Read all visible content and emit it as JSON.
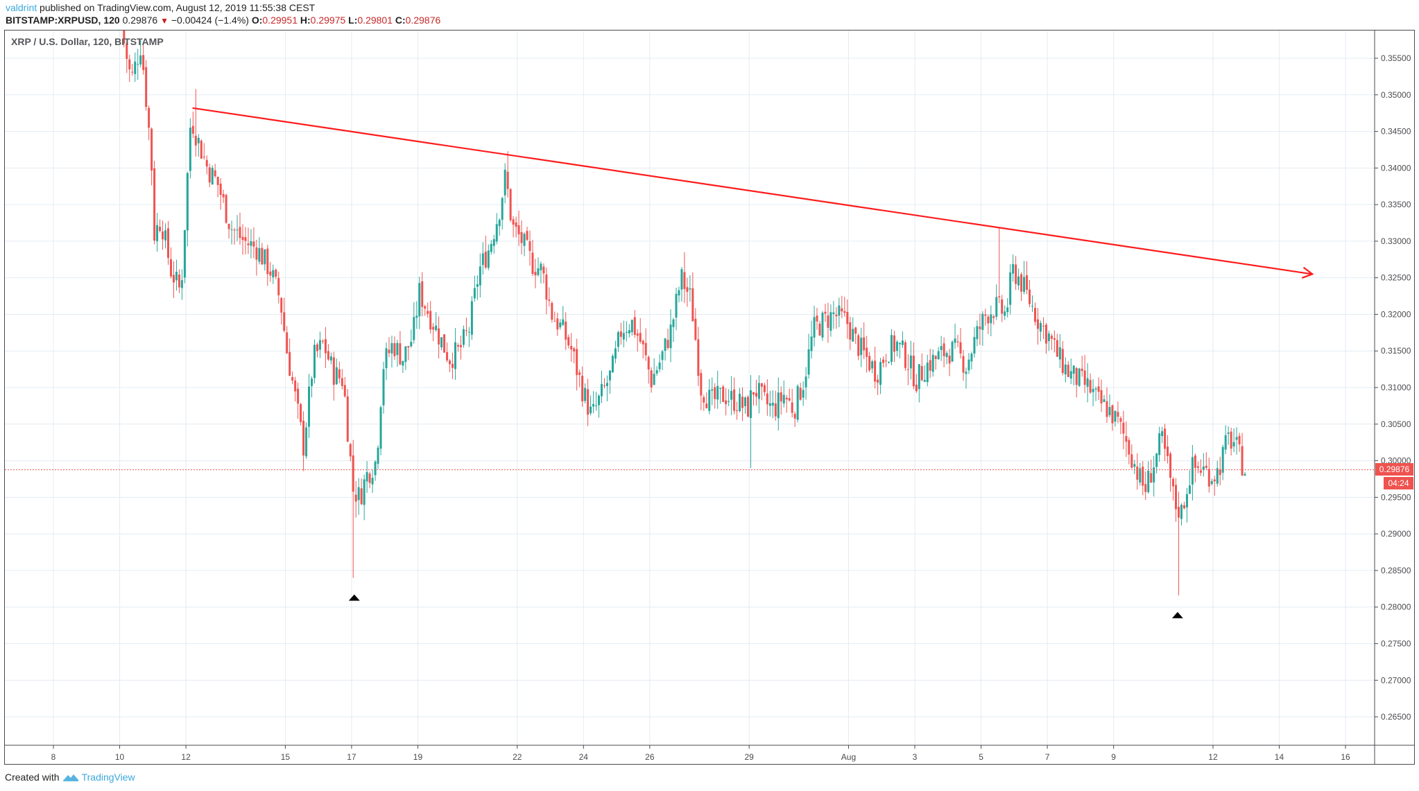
{
  "header": {
    "user": "valdrint",
    "published_text": " published on TradingView.com, August 12, 2019 11:55:38 CEST",
    "symbol": "BITSTAMP:XRPUSD, 120",
    "last_price": "0.29876",
    "change_icon": "triangle-down-icon",
    "change": "−0.00424 (−1.4%)",
    "open_label": "O:",
    "open": "0.29951",
    "high_label": "H:",
    "high": "0.29975",
    "low_label": "L:",
    "low": "0.29801",
    "close_label": "C:",
    "close": "0.29876"
  },
  "legend": "XRP / U.S. Dollar, 120, BITSTAMP",
  "price_tag": {
    "price": "0.29876",
    "countdown": "04:24"
  },
  "footer": {
    "created_with": "Created with",
    "brand": "TradingView",
    "logo_icon": "tradingview-logo-icon"
  },
  "colors": {
    "up": "#26a69a",
    "down": "#ef5350",
    "trendline": "#ff1a1a",
    "grid": "#e3ecf3",
    "axis": "#4a4a4f",
    "price_line": "#ef5350",
    "marker": "#000000"
  },
  "chart_data": {
    "type": "candlestick",
    "title": "XRP / U.S. Dollar, 120, BITSTAMP",
    "interval": "120 (2h candles)",
    "xlabel": "",
    "ylabel": "",
    "ylim": [
      0.2605,
      0.3595
    ],
    "grid": true,
    "y_ticks": [
      "0.35500",
      "0.35000",
      "0.34500",
      "0.34000",
      "0.33500",
      "0.33000",
      "0.32500",
      "0.32000",
      "0.31500",
      "0.31000",
      "0.30500",
      "0.30000",
      "0.29500",
      "0.29000",
      "0.28500",
      "0.28000",
      "0.27500",
      "0.27000",
      "0.26500"
    ],
    "x_ticks": [
      {
        "label": "8",
        "day": 0
      },
      {
        "label": "10",
        "day": 2
      },
      {
        "label": "12",
        "day": 4
      },
      {
        "label": "15",
        "day": 7
      },
      {
        "label": "17",
        "day": 9
      },
      {
        "label": "19",
        "day": 11
      },
      {
        "label": "22",
        "day": 14
      },
      {
        "label": "24",
        "day": 16
      },
      {
        "label": "26",
        "day": 18
      },
      {
        "label": "29",
        "day": 21
      },
      {
        "label": "Aug",
        "day": 24
      },
      {
        "label": "3",
        "day": 26
      },
      {
        "label": "5",
        "day": 28
      },
      {
        "label": "7",
        "day": 30
      },
      {
        "label": "9",
        "day": 32
      },
      {
        "label": "12",
        "day": 35
      },
      {
        "label": "14",
        "day": 37
      },
      {
        "label": "16",
        "day": 39
      }
    ],
    "close_path": [
      [
        2.1,
        0.359
      ],
      [
        2.4,
        0.352
      ],
      [
        2.7,
        0.357
      ],
      [
        3.0,
        0.342
      ],
      [
        3.1,
        0.331
      ],
      [
        3.3,
        0.333
      ],
      [
        3.6,
        0.326
      ],
      [
        3.9,
        0.323
      ],
      [
        4.2,
        0.347
      ],
      [
        4.4,
        0.344
      ],
      [
        4.7,
        0.34
      ],
      [
        5.0,
        0.338
      ],
      [
        5.4,
        0.332
      ],
      [
        5.8,
        0.33
      ],
      [
        6.2,
        0.329
      ],
      [
        6.6,
        0.326
      ],
      [
        6.9,
        0.322
      ],
      [
        7.1,
        0.315
      ],
      [
        7.3,
        0.31
      ],
      [
        7.6,
        0.302
      ],
      [
        7.9,
        0.314
      ],
      [
        8.2,
        0.316
      ],
      [
        8.5,
        0.312
      ],
      [
        8.8,
        0.311
      ],
      [
        9.0,
        0.301
      ],
      [
        9.1,
        0.296
      ],
      [
        9.3,
        0.295
      ],
      [
        9.5,
        0.298
      ],
      [
        9.8,
        0.3
      ],
      [
        10.0,
        0.313
      ],
      [
        10.3,
        0.316
      ],
      [
        10.6,
        0.314
      ],
      [
        10.9,
        0.317
      ],
      [
        11.1,
        0.323
      ],
      [
        11.4,
        0.32
      ],
      [
        11.7,
        0.317
      ],
      [
        12.0,
        0.314
      ],
      [
        12.3,
        0.315
      ],
      [
        12.6,
        0.318
      ],
      [
        12.9,
        0.326
      ],
      [
        13.2,
        0.329
      ],
      [
        13.5,
        0.334
      ],
      [
        13.7,
        0.339
      ],
      [
        13.9,
        0.332
      ],
      [
        14.2,
        0.33
      ],
      [
        14.5,
        0.327
      ],
      [
        14.8,
        0.326
      ],
      [
        15.1,
        0.32
      ],
      [
        15.4,
        0.318
      ],
      [
        15.7,
        0.315
      ],
      [
        16.0,
        0.31
      ],
      [
        16.3,
        0.306
      ],
      [
        16.6,
        0.309
      ],
      [
        16.9,
        0.312
      ],
      [
        17.2,
        0.318
      ],
      [
        17.5,
        0.319
      ],
      [
        17.8,
        0.316
      ],
      [
        18.1,
        0.311
      ],
      [
        18.4,
        0.314
      ],
      [
        18.7,
        0.318
      ],
      [
        19.0,
        0.325
      ],
      [
        19.3,
        0.322
      ],
      [
        19.6,
        0.31
      ],
      [
        19.9,
        0.308
      ],
      [
        20.3,
        0.309
      ],
      [
        20.7,
        0.308
      ],
      [
        21.0,
        0.307
      ],
      [
        21.2,
        0.31
      ],
      [
        21.5,
        0.308
      ],
      [
        21.8,
        0.307
      ],
      [
        22.1,
        0.309
      ],
      [
        22.4,
        0.307
      ],
      [
        22.7,
        0.311
      ],
      [
        23.0,
        0.318
      ],
      [
        23.3,
        0.319
      ],
      [
        23.6,
        0.32
      ],
      [
        24.0,
        0.319
      ],
      [
        24.3,
        0.316
      ],
      [
        24.6,
        0.314
      ],
      [
        24.9,
        0.312
      ],
      [
        25.2,
        0.315
      ],
      [
        25.5,
        0.316
      ],
      [
        25.8,
        0.314
      ],
      [
        26.1,
        0.311
      ],
      [
        26.4,
        0.313
      ],
      [
        26.7,
        0.314
      ],
      [
        27.0,
        0.315
      ],
      [
        27.3,
        0.315
      ],
      [
        27.6,
        0.313
      ],
      [
        27.9,
        0.317
      ],
      [
        28.2,
        0.32
      ],
      [
        28.5,
        0.321
      ],
      [
        28.8,
        0.32
      ],
      [
        29.0,
        0.326
      ],
      [
        29.2,
        0.325
      ],
      [
        29.5,
        0.322
      ],
      [
        29.8,
        0.319
      ],
      [
        30.1,
        0.317
      ],
      [
        30.4,
        0.314
      ],
      [
        30.7,
        0.312
      ],
      [
        31.0,
        0.311
      ],
      [
        31.3,
        0.31
      ],
      [
        31.6,
        0.308
      ],
      [
        31.9,
        0.307
      ],
      [
        32.2,
        0.305
      ],
      [
        32.5,
        0.302
      ],
      [
        32.8,
        0.298
      ],
      [
        33.0,
        0.296
      ],
      [
        33.3,
        0.3
      ],
      [
        33.5,
        0.303
      ],
      [
        33.7,
        0.299
      ],
      [
        33.9,
        0.294
      ],
      [
        34.1,
        0.293
      ],
      [
        34.4,
        0.299
      ],
      [
        34.7,
        0.299
      ],
      [
        35.0,
        0.298
      ],
      [
        35.2,
        0.2985
      ],
      [
        35.5,
        0.303
      ],
      [
        35.7,
        0.3025
      ],
      [
        35.9,
        0.3
      ],
      [
        36.0,
        0.2988
      ]
    ],
    "notable_extremes": [
      {
        "day": 4.25,
        "price": 0.3508,
        "type": "high"
      },
      {
        "day": 9.05,
        "price": 0.284,
        "type": "low",
        "marker": "triangle-up"
      },
      {
        "day": 13.65,
        "price": 0.3423,
        "type": "high"
      },
      {
        "day": 19.05,
        "price": 0.3285,
        "type": "high"
      },
      {
        "day": 21.0,
        "price": 0.299,
        "type": "low"
      },
      {
        "day": 28.5,
        "price": 0.3318,
        "type": "high"
      },
      {
        "day": 33.9,
        "price": 0.2816,
        "type": "low",
        "marker": "triangle-up"
      }
    ],
    "trendline": {
      "from": {
        "day": 4.2,
        "price": 0.3482
      },
      "to": {
        "day": 38.0,
        "price": 0.3255
      },
      "arrow": true
    },
    "last_price_line": 0.29876
  }
}
